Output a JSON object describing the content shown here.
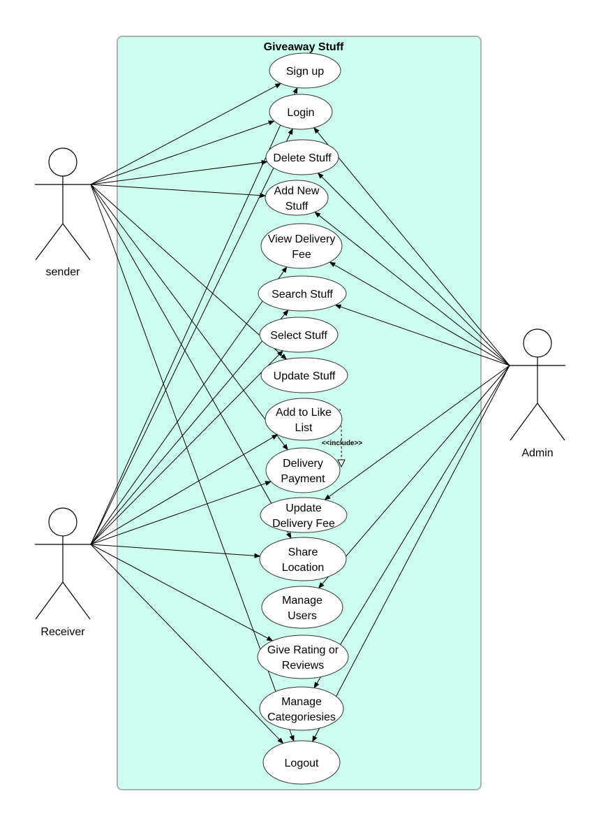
{
  "system": {
    "title": "Giveaway Stuff"
  },
  "actors": [
    {
      "id": "sender",
      "label": "sender"
    },
    {
      "id": "receiver",
      "label": "Receiver"
    },
    {
      "id": "admin",
      "label": "Admin"
    }
  ],
  "use_cases": [
    {
      "id": "signup",
      "lines": [
        "Sign up"
      ]
    },
    {
      "id": "login",
      "lines": [
        "Login"
      ]
    },
    {
      "id": "delete",
      "lines": [
        "Delete Stuff"
      ]
    },
    {
      "id": "addnew",
      "lines": [
        "Add New",
        "Stuff"
      ]
    },
    {
      "id": "viewfee",
      "lines": [
        "View Delivery",
        "Fee"
      ]
    },
    {
      "id": "search",
      "lines": [
        "Search Stuff"
      ]
    },
    {
      "id": "select",
      "lines": [
        "Select Stuff"
      ]
    },
    {
      "id": "update",
      "lines": [
        "Update Stuff"
      ]
    },
    {
      "id": "like",
      "lines": [
        "Add to Like",
        "List"
      ]
    },
    {
      "id": "payment",
      "lines": [
        "Delivery",
        "Payment"
      ]
    },
    {
      "id": "updfee",
      "lines": [
        "Update",
        "Delivery Fee"
      ]
    },
    {
      "id": "share",
      "lines": [
        "Share",
        "Location"
      ]
    },
    {
      "id": "users",
      "lines": [
        "Manage",
        "Users"
      ]
    },
    {
      "id": "rating",
      "lines": [
        "Give Rating or",
        "Reviews"
      ]
    },
    {
      "id": "cats",
      "lines": [
        "Manage",
        "Categoriesies"
      ]
    },
    {
      "id": "logout",
      "lines": [
        "Logout"
      ]
    }
  ],
  "associations": {
    "sender": [
      "signup",
      "login",
      "delete",
      "addnew",
      "update",
      "payment",
      "share",
      "logout"
    ],
    "receiver": [
      "signup",
      "login",
      "viewfee",
      "search",
      "select",
      "like",
      "payment",
      "share",
      "rating",
      "logout"
    ],
    "admin": [
      "login",
      "delete",
      "addnew",
      "viewfee",
      "search",
      "updfee",
      "users",
      "cats",
      "logout"
    ]
  },
  "include": {
    "from": "like",
    "to": "payment",
    "label": "<<include>>"
  }
}
